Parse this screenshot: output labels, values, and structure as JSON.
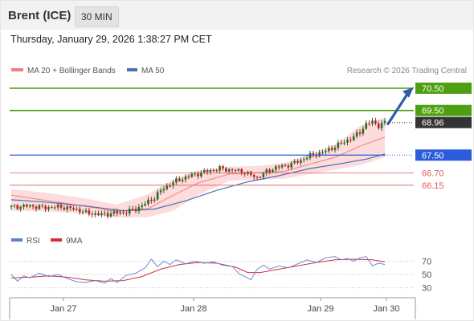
{
  "header": {
    "instrument": "Brent (ICE)",
    "timeframe": "30 MIN",
    "datetime": "Thursday, January 29, 2026 1:38:27 PM CET"
  },
  "legend": {
    "ma20_label": "MA 20 + Bollinger Bands",
    "ma50_label": "MA 50",
    "credit": "Research © 2026 Trading Central"
  },
  "colors": {
    "resistance": "#4ea012",
    "pivot": "#2a5cdb",
    "support": "#e05a5a",
    "current": "#333333",
    "ma20": "#f08080",
    "ma50": "#4a6fb5",
    "bollinger_fill": "#fbd6d6",
    "candle_up": "#2e6b25",
    "candle_down": "#b32525",
    "forecast_arrow": "#2f5da8",
    "rsi": "#5b7fd4",
    "rsi_ma": "#d43030"
  },
  "chart_data": [
    {
      "type": "candlestick",
      "title": "Brent (ICE) 30 MIN",
      "x_ticks": [
        "Jan 27",
        "Jan 28",
        "Jan 29",
        "Jan 30"
      ],
      "ylim": [
        64.2,
        71.0
      ],
      "current_price": "68.96",
      "levels": [
        {
          "value": 70.5,
          "label": "70.50",
          "kind": "resistance"
        },
        {
          "value": 69.5,
          "label": "69.50",
          "kind": "resistance"
        },
        {
          "value": 68.96,
          "label": "68.96",
          "kind": "current"
        },
        {
          "value": 67.5,
          "label": "67.50",
          "kind": "pivot"
        },
        {
          "value": 66.7,
          "label": "66.70",
          "kind": "support"
        },
        {
          "value": 66.15,
          "label": "66.15",
          "kind": "support"
        }
      ],
      "overlays": [
        "MA 20 + Bollinger Bands",
        "MA 50"
      ],
      "forecast_arrow": {
        "from": 68.9,
        "to": 70.4
      },
      "close_path": [
        {
          "t": 0,
          "v": 65.18
        },
        {
          "t": 6,
          "v": 65.22
        },
        {
          "t": 10,
          "v": 65.15
        },
        {
          "t": 16,
          "v": 65.18
        },
        {
          "t": 22,
          "v": 65.03
        },
        {
          "t": 24,
          "v": 64.9
        },
        {
          "t": 29,
          "v": 64.83
        },
        {
          "t": 33,
          "v": 64.9
        },
        {
          "t": 36,
          "v": 64.92
        },
        {
          "t": 40,
          "v": 65.08
        },
        {
          "t": 43,
          "v": 65.32
        },
        {
          "t": 46,
          "v": 65.6
        },
        {
          "t": 48,
          "v": 65.9
        },
        {
          "t": 51,
          "v": 66.2
        },
        {
          "t": 54,
          "v": 66.4
        },
        {
          "t": 58,
          "v": 66.6
        },
        {
          "t": 63,
          "v": 66.78
        },
        {
          "t": 67,
          "v": 66.9
        },
        {
          "t": 71,
          "v": 66.82
        },
        {
          "t": 74,
          "v": 66.78
        },
        {
          "t": 77,
          "v": 66.6
        },
        {
          "t": 79,
          "v": 66.5
        },
        {
          "t": 82,
          "v": 66.75
        },
        {
          "t": 85,
          "v": 66.95
        },
        {
          "t": 88,
          "v": 67.02
        },
        {
          "t": 92,
          "v": 67.2
        },
        {
          "t": 96,
          "v": 67.48
        },
        {
          "t": 100,
          "v": 67.62
        },
        {
          "t": 104,
          "v": 67.88
        },
        {
          "t": 107,
          "v": 68.1
        },
        {
          "t": 110,
          "v": 68.3
        },
        {
          "t": 112,
          "v": 68.55
        },
        {
          "t": 114,
          "v": 68.88
        },
        {
          "t": 116,
          "v": 69.0
        },
        {
          "t": 118,
          "v": 68.82
        },
        {
          "t": 120,
          "v": 68.96
        }
      ],
      "ma20_path": [
        {
          "t": 0,
          "v": 65.7
        },
        {
          "t": 12,
          "v": 65.45
        },
        {
          "t": 24,
          "v": 65.2
        },
        {
          "t": 34,
          "v": 64.98
        },
        {
          "t": 44,
          "v": 65.1
        },
        {
          "t": 52,
          "v": 65.7
        },
        {
          "t": 60,
          "v": 66.25
        },
        {
          "t": 70,
          "v": 66.65
        },
        {
          "t": 80,
          "v": 66.72
        },
        {
          "t": 88,
          "v": 66.78
        },
        {
          "t": 96,
          "v": 67.1
        },
        {
          "t": 104,
          "v": 67.4
        },
        {
          "t": 112,
          "v": 67.9
        },
        {
          "t": 120,
          "v": 68.3
        }
      ],
      "bollinger_upper": [
        {
          "t": 0,
          "v": 65.98
        },
        {
          "t": 12,
          "v": 65.8
        },
        {
          "t": 24,
          "v": 65.55
        },
        {
          "t": 34,
          "v": 65.28
        },
        {
          "t": 44,
          "v": 65.75
        },
        {
          "t": 52,
          "v": 66.4
        },
        {
          "t": 60,
          "v": 66.8
        },
        {
          "t": 70,
          "v": 66.98
        },
        {
          "t": 80,
          "v": 67.02
        },
        {
          "t": 88,
          "v": 67.15
        },
        {
          "t": 96,
          "v": 67.55
        },
        {
          "t": 104,
          "v": 67.95
        },
        {
          "t": 112,
          "v": 68.8
        },
        {
          "t": 120,
          "v": 69.2
        }
      ],
      "bollinger_lower": [
        {
          "t": 0,
          "v": 65.0
        },
        {
          "t": 12,
          "v": 64.98
        },
        {
          "t": 24,
          "v": 64.86
        },
        {
          "t": 34,
          "v": 64.7
        },
        {
          "t": 44,
          "v": 64.72
        },
        {
          "t": 52,
          "v": 65.0
        },
        {
          "t": 60,
          "v": 65.7
        },
        {
          "t": 70,
          "v": 66.35
        },
        {
          "t": 80,
          "v": 66.4
        },
        {
          "t": 88,
          "v": 66.45
        },
        {
          "t": 96,
          "v": 66.65
        },
        {
          "t": 104,
          "v": 66.85
        },
        {
          "t": 112,
          "v": 67.05
        },
        {
          "t": 120,
          "v": 67.4
        }
      ],
      "ma50_path": [
        {
          "t": 0,
          "v": 65.5
        },
        {
          "t": 12,
          "v": 65.38
        },
        {
          "t": 24,
          "v": 65.22
        },
        {
          "t": 36,
          "v": 65.0
        },
        {
          "t": 46,
          "v": 65.08
        },
        {
          "t": 56,
          "v": 65.45
        },
        {
          "t": 66,
          "v": 65.92
        },
        {
          "t": 76,
          "v": 66.3
        },
        {
          "t": 86,
          "v": 66.58
        },
        {
          "t": 96,
          "v": 66.9
        },
        {
          "t": 106,
          "v": 67.12
        },
        {
          "t": 114,
          "v": 67.32
        },
        {
          "t": 120,
          "v": 67.55
        }
      ]
    },
    {
      "type": "line",
      "title": "RSI",
      "series": [
        {
          "name": "RSI"
        },
        {
          "name": "9MA"
        }
      ],
      "ylim": [
        20,
        85
      ],
      "y_ticks": [
        70,
        50,
        30
      ],
      "rsi_path": [
        {
          "t": 0,
          "v": 50
        },
        {
          "t": 2,
          "v": 40
        },
        {
          "t": 4,
          "v": 48
        },
        {
          "t": 6,
          "v": 45
        },
        {
          "t": 9,
          "v": 52
        },
        {
          "t": 12,
          "v": 47
        },
        {
          "t": 15,
          "v": 50
        },
        {
          "t": 18,
          "v": 44
        },
        {
          "t": 21,
          "v": 39
        },
        {
          "t": 24,
          "v": 38
        },
        {
          "t": 27,
          "v": 41
        },
        {
          "t": 30,
          "v": 37
        },
        {
          "t": 32,
          "v": 44
        },
        {
          "t": 34,
          "v": 38
        },
        {
          "t": 37,
          "v": 49
        },
        {
          "t": 40,
          "v": 52
        },
        {
          "t": 43,
          "v": 60
        },
        {
          "t": 45,
          "v": 73
        },
        {
          "t": 47,
          "v": 62
        },
        {
          "t": 49,
          "v": 70
        },
        {
          "t": 51,
          "v": 65
        },
        {
          "t": 53,
          "v": 72
        },
        {
          "t": 56,
          "v": 66
        },
        {
          "t": 59,
          "v": 70
        },
        {
          "t": 62,
          "v": 67
        },
        {
          "t": 65,
          "v": 69
        },
        {
          "t": 68,
          "v": 64
        },
        {
          "t": 71,
          "v": 62
        },
        {
          "t": 73,
          "v": 52
        },
        {
          "t": 75,
          "v": 47
        },
        {
          "t": 77,
          "v": 42
        },
        {
          "t": 79,
          "v": 58
        },
        {
          "t": 81,
          "v": 64
        },
        {
          "t": 83,
          "v": 58
        },
        {
          "t": 86,
          "v": 63
        },
        {
          "t": 89,
          "v": 60
        },
        {
          "t": 92,
          "v": 66
        },
        {
          "t": 95,
          "v": 72
        },
        {
          "t": 98,
          "v": 68
        },
        {
          "t": 101,
          "v": 75
        },
        {
          "t": 104,
          "v": 77
        },
        {
          "t": 106,
          "v": 72
        },
        {
          "t": 108,
          "v": 74
        },
        {
          "t": 110,
          "v": 70
        },
        {
          "t": 112,
          "v": 75
        },
        {
          "t": 114,
          "v": 77
        },
        {
          "t": 116,
          "v": 63
        },
        {
          "t": 118,
          "v": 67
        },
        {
          "t": 120,
          "v": 65
        }
      ],
      "ma9_path": [
        {
          "t": 0,
          "v": 45
        },
        {
          "t": 6,
          "v": 46
        },
        {
          "t": 12,
          "v": 48
        },
        {
          "t": 18,
          "v": 46
        },
        {
          "t": 24,
          "v": 42
        },
        {
          "t": 30,
          "v": 40
        },
        {
          "t": 36,
          "v": 41
        },
        {
          "t": 42,
          "v": 47
        },
        {
          "t": 48,
          "v": 58
        },
        {
          "t": 54,
          "v": 65
        },
        {
          "t": 60,
          "v": 68
        },
        {
          "t": 66,
          "v": 67
        },
        {
          "t": 72,
          "v": 61
        },
        {
          "t": 76,
          "v": 53
        },
        {
          "t": 80,
          "v": 53
        },
        {
          "t": 86,
          "v": 58
        },
        {
          "t": 92,
          "v": 63
        },
        {
          "t": 98,
          "v": 68
        },
        {
          "t": 104,
          "v": 72
        },
        {
          "t": 110,
          "v": 73
        },
        {
          "t": 116,
          "v": 72
        },
        {
          "t": 120,
          "v": 69
        }
      ]
    }
  ]
}
